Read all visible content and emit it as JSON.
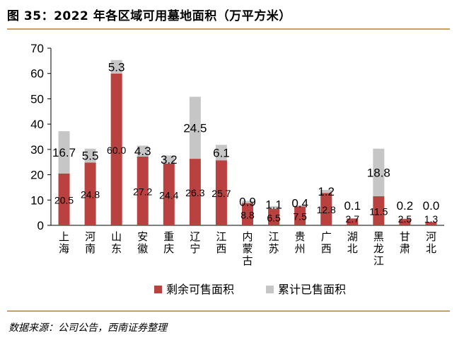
{
  "header": {
    "title": "图 35：2022 年各区域可用墓地面积（万平方米）"
  },
  "footer": {
    "source": "数据来源：公司公告，西南证券整理"
  },
  "colors": {
    "remaining": "#b9413f",
    "sold": "#c6c6c6",
    "rule": "#c9a063"
  },
  "chart_data": {
    "type": "bar",
    "stacked": true,
    "title": "",
    "xlabel": "",
    "ylabel": "",
    "ylim": [
      0,
      70
    ],
    "yticks": [
      0,
      10,
      20,
      30,
      40,
      50,
      60,
      70
    ],
    "grid": false,
    "legend_position": "bottom",
    "categories": [
      "上海",
      "河南",
      "山东",
      "安徽",
      "重庆",
      "辽宁",
      "江西",
      "内蒙古",
      "江苏",
      "贵州",
      "广西",
      "湖北",
      "黑龙江",
      "甘肃",
      "河北"
    ],
    "series": [
      {
        "name": "剩余可售面积",
        "values": [
          20.5,
          24.8,
          60.0,
          27.2,
          24.4,
          26.3,
          25.7,
          8.8,
          6.5,
          7.5,
          12.8,
          2.7,
          11.5,
          2.5,
          1.3
        ],
        "labels": [
          "20.5",
          "24.8",
          "60.0",
          "27.2",
          "24.4",
          "26.3",
          "25.7",
          "8.8",
          "6.5",
          "7.5",
          "12.8",
          "2.7",
          "11.5",
          "2.5",
          "1.3"
        ]
      },
      {
        "name": "累计已售面积",
        "values": [
          16.7,
          5.5,
          5.3,
          4.3,
          3.2,
          24.5,
          6.1,
          0.9,
          1.1,
          0.4,
          1.2,
          0.1,
          18.8,
          0.2,
          0.0
        ],
        "labels": [
          "16.7",
          "5.5",
          "5.3",
          "4.3",
          "3.2",
          "24.5",
          "6.1",
          "0.9",
          "1.1",
          "0.4",
          "1.2",
          "0.1",
          "18.8",
          "0.2",
          "0.0"
        ]
      }
    ]
  }
}
